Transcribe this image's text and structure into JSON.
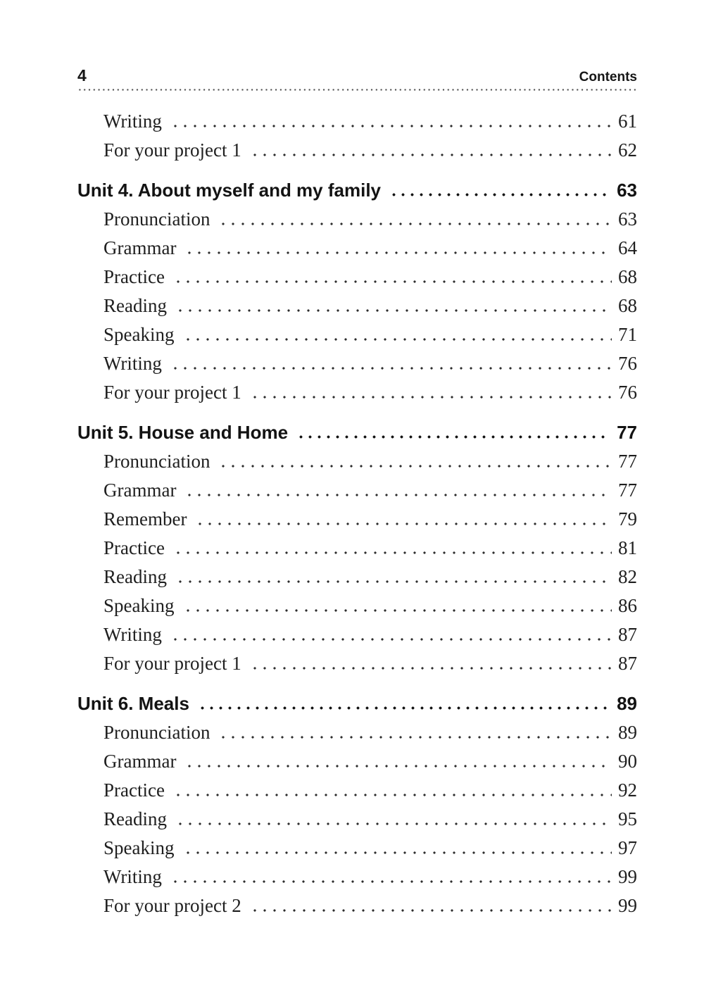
{
  "header": {
    "page_number": "4",
    "title": "Contents"
  },
  "colors": {
    "text": "#1c1c1c",
    "background": "#ffffff"
  },
  "toc": {
    "entries": [
      {
        "label": "Writing",
        "page": "61",
        "style": "sub"
      },
      {
        "label": "For your project 1",
        "page": "62",
        "style": "sub"
      },
      {
        "label": "Unit 4. About myself and my family",
        "page": "63",
        "style": "unit"
      },
      {
        "label": "Pronunciation",
        "page": "63",
        "style": "sub"
      },
      {
        "label": "Grammar",
        "page": "64",
        "style": "sub"
      },
      {
        "label": "Practice",
        "page": "68",
        "style": "sub"
      },
      {
        "label": "Reading",
        "page": "68",
        "style": "sub"
      },
      {
        "label": "Speaking",
        "page": "71",
        "style": "sub"
      },
      {
        "label": "Writing",
        "page": "76",
        "style": "sub"
      },
      {
        "label": "For your project 1",
        "page": "76",
        "style": "sub"
      },
      {
        "label": "Unit 5. House and Home",
        "page": "77",
        "style": "unit"
      },
      {
        "label": "Pronunciation",
        "page": "77",
        "style": "sub"
      },
      {
        "label": "Grammar",
        "page": "77",
        "style": "sub"
      },
      {
        "label": "Remember",
        "page": "79",
        "style": "sub"
      },
      {
        "label": "Practice",
        "page": "81",
        "style": "sub"
      },
      {
        "label": "Reading",
        "page": "82",
        "style": "sub"
      },
      {
        "label": "Speaking",
        "page": "86",
        "style": "sub"
      },
      {
        "label": "Writing",
        "page": "87",
        "style": "sub"
      },
      {
        "label": "For your project 1",
        "page": "87",
        "style": "sub"
      },
      {
        "label": "Unit 6. Meals",
        "page": "89",
        "style": "unit"
      },
      {
        "label": "Pronunciation",
        "page": "89",
        "style": "sub"
      },
      {
        "label": "Grammar",
        "page": "90",
        "style": "sub"
      },
      {
        "label": "Practice",
        "page": "92",
        "style": "sub"
      },
      {
        "label": "Reading",
        "page": "95",
        "style": "sub"
      },
      {
        "label": "Speaking",
        "page": "97",
        "style": "sub"
      },
      {
        "label": "Writing",
        "page": "99",
        "style": "sub"
      },
      {
        "label": "For your project 2",
        "page": "99",
        "style": "sub"
      }
    ]
  }
}
